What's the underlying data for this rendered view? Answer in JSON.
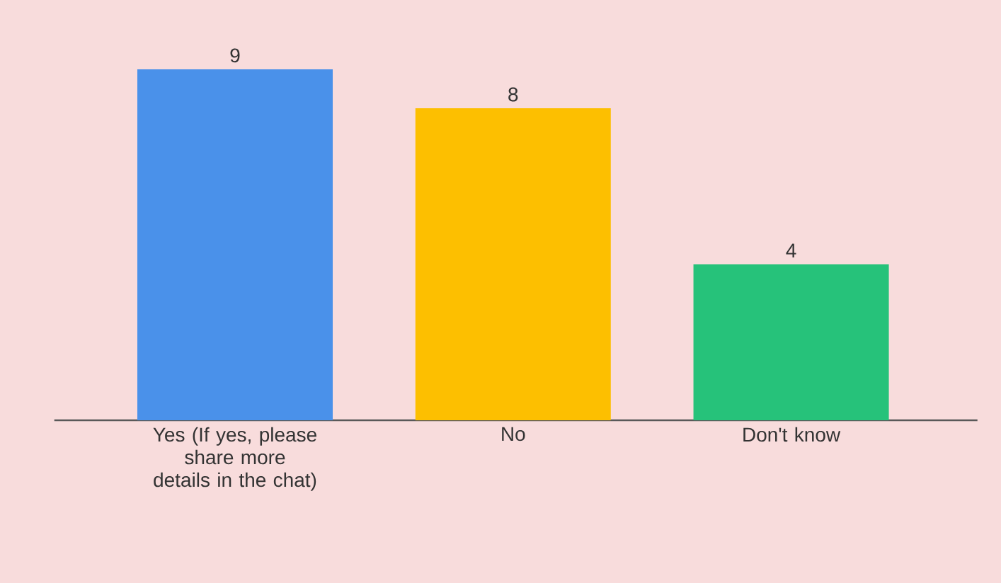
{
  "chart_data": {
    "type": "bar",
    "categories": [
      "Yes (If yes, please share more details in the chat)",
      "No",
      "Don't know"
    ],
    "values": [
      9,
      8,
      4
    ],
    "colors": [
      "#4a91ea",
      "#fdbf00",
      "#26c27a"
    ],
    "data_labels": true
  }
}
